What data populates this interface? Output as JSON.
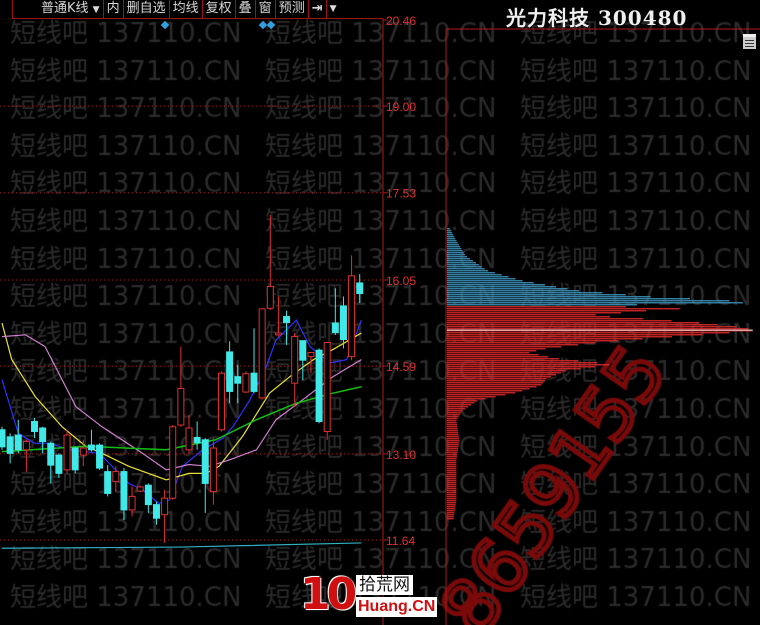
{
  "toolbar": {
    "kline_type": "普通K线",
    "items": [
      "内",
      "删自选",
      "均线",
      "复权",
      "叠",
      "窗",
      "预测"
    ],
    "icons": [
      "dropdown-arrow-icon",
      "jump-to-end-icon",
      "more-arrow-icon"
    ]
  },
  "header": {
    "title": "光力科技 300480"
  },
  "watermark": {
    "text": "短线吧 137110.CN",
    "overlay_number": "8659155"
  },
  "logo": {
    "number": "10",
    "cn": "拾荒网",
    "en": "Huang.CN"
  },
  "colors": {
    "up": "#e03030",
    "down": "#40e8e8",
    "grid": "#b01818",
    "ma5": "#3030ff",
    "ma10": "#e8e030",
    "ma20": "#d080d0",
    "ma60": "#10c010",
    "ma_long": "#30b0c0",
    "chip_profit": "#3a90b8",
    "chip_loss": "#d82828"
  },
  "chart_data": {
    "type": "candlestick",
    "yaxis": {
      "ticks": [
        "20.46",
        "19.00",
        "17.53",
        "16.05",
        "14.59",
        "13.10",
        "11.64"
      ],
      "range": [
        11.64,
        20.46
      ],
      "grid": "dashed"
    },
    "candles": [
      [
        13.51,
        13.56,
        13.17,
        13.22
      ],
      [
        13.39,
        13.45,
        12.94,
        13.11
      ],
      [
        13.42,
        13.68,
        13.11,
        13.17
      ],
      [
        13.17,
        13.34,
        12.8,
        13.31
      ],
      [
        13.65,
        13.71,
        13.37,
        13.48
      ],
      [
        13.54,
        13.56,
        13.11,
        13.31
      ],
      [
        13.28,
        13.31,
        12.6,
        12.91
      ],
      [
        13.08,
        13.11,
        12.69,
        12.77
      ],
      [
        12.83,
        13.51,
        12.77,
        13.42
      ],
      [
        13.2,
        13.22,
        12.77,
        12.83
      ],
      [
        13.08,
        13.34,
        12.89,
        13.2
      ],
      [
        13.25,
        13.51,
        13.14,
        13.17
      ],
      [
        13.25,
        13.28,
        12.83,
        12.86
      ],
      [
        12.8,
        12.91,
        12.38,
        12.43
      ],
      [
        12.63,
        12.89,
        12.46,
        12.8
      ],
      [
        12.8,
        12.86,
        11.98,
        12.15
      ],
      [
        12.15,
        12.55,
        12.04,
        12.38
      ],
      [
        12.47,
        12.56,
        12.45,
        12.54
      ],
      [
        12.57,
        12.6,
        12.1,
        12.24
      ],
      [
        12.24,
        12.29,
        11.9,
        12.01
      ],
      [
        12.07,
        12.49,
        11.59,
        12.35
      ],
      [
        12.35,
        13.59,
        12.32,
        13.56
      ],
      [
        13.59,
        14.92,
        13.56,
        14.21
      ],
      [
        13.17,
        13.76,
        13.11,
        13.54
      ],
      [
        13.38,
        13.65,
        13.17,
        13.29
      ],
      [
        13.34,
        13.37,
        12.1,
        12.6
      ],
      [
        12.46,
        13.37,
        12.24,
        13.2
      ],
      [
        13.51,
        14.5,
        13.48,
        14.47
      ],
      [
        14.83,
        15.01,
        13.96,
        14.16
      ],
      [
        14.41,
        14.61,
        13.96,
        14.3
      ],
      [
        14.15,
        14.5,
        14.13,
        14.46
      ],
      [
        14.47,
        15.23,
        14.13,
        14.16
      ],
      [
        14.05,
        15.57,
        14.02,
        15.56
      ],
      [
        15.57,
        17.15,
        15.54,
        15.94
      ],
      [
        15.12,
        15.77,
        15.09,
        15.15
      ],
      [
        15.43,
        15.53,
        14.95,
        15.33
      ],
      [
        14.3,
        15.15,
        13.9,
        15.09
      ],
      [
        15.02,
        15.03,
        14.35,
        14.69
      ],
      [
        14.75,
        14.83,
        14.47,
        14.82
      ],
      [
        14.86,
        14.89,
        13.62,
        13.65
      ],
      [
        13.48,
        15.0,
        13.34,
        14.99
      ],
      [
        15.32,
        15.91,
        15.12,
        15.16
      ],
      [
        15.61,
        15.77,
        14.89,
        15.04
      ],
      [
        14.75,
        16.47,
        14.69,
        16.12
      ],
      [
        16.0,
        16.15,
        15.66,
        15.82
      ]
    ],
    "candle_fields": [
      "open",
      "high",
      "low",
      "close"
    ],
    "moving_averages": [
      {
        "key": "ma5",
        "points": [
          [
            0,
            14.36
          ],
          [
            2,
            13.45
          ],
          [
            4,
            13.28
          ],
          [
            6,
            13.28
          ],
          [
            8.2,
            13.17
          ],
          [
            12,
            13.11
          ],
          [
            13.2,
            12.94
          ],
          [
            15.6,
            12.6
          ],
          [
            17.3,
            12.49
          ],
          [
            19.3,
            12.26
          ],
          [
            20.6,
            12.32
          ],
          [
            22.2,
            12.89
          ],
          [
            24.7,
            13.17
          ],
          [
            27.2,
            13.37
          ],
          [
            28.4,
            13.56
          ],
          [
            30.5,
            14.02
          ],
          [
            32.5,
            14.58
          ],
          [
            33.7,
            15.03
          ],
          [
            36.2,
            15.37
          ],
          [
            37.9,
            14.92
          ],
          [
            40.3,
            14.64
          ],
          [
            42.4,
            14.7
          ],
          [
            44.2,
            15.37
          ]
        ]
      },
      {
        "key": "ma10",
        "points": [
          [
            0,
            15.32
          ],
          [
            1.2,
            14.7
          ],
          [
            4.1,
            14.07
          ],
          [
            7.4,
            13.56
          ],
          [
            10.3,
            13.23
          ],
          [
            12.3,
            13.11
          ],
          [
            15.6,
            12.89
          ],
          [
            20.2,
            12.66
          ],
          [
            23,
            12.77
          ],
          [
            25.1,
            12.77
          ],
          [
            26.7,
            12.89
          ],
          [
            29.6,
            13.4
          ],
          [
            32.9,
            14.13
          ],
          [
            35.4,
            14.41
          ],
          [
            38.3,
            14.7
          ],
          [
            40.7,
            14.87
          ],
          [
            44.2,
            15.15
          ]
        ]
      },
      {
        "key": "ma20",
        "points": [
          [
            0,
            15.09
          ],
          [
            2.9,
            15.12
          ],
          [
            5.3,
            14.92
          ],
          [
            9.1,
            13.9
          ],
          [
            12.3,
            13.56
          ],
          [
            17.3,
            13.11
          ],
          [
            20.2,
            12.83
          ],
          [
            23,
            12.92
          ],
          [
            25.5,
            12.89
          ],
          [
            28,
            13.0
          ],
          [
            31.3,
            13.17
          ],
          [
            33.7,
            13.68
          ],
          [
            37,
            14.02
          ],
          [
            40.7,
            14.41
          ],
          [
            44.2,
            14.7
          ]
        ]
      },
      {
        "key": "ma60",
        "points": [
          [
            0,
            13.14
          ],
          [
            10.3,
            13.23
          ],
          [
            20.2,
            13.17
          ],
          [
            26.3,
            13.34
          ],
          [
            31.3,
            13.68
          ],
          [
            36.2,
            13.96
          ],
          [
            40.7,
            14.13
          ],
          [
            44.2,
            14.24
          ]
        ]
      },
      {
        "key": "ma_long",
        "points": [
          [
            0,
            11.5
          ],
          [
            22,
            11.52
          ],
          [
            44.2,
            11.59
          ]
        ]
      }
    ],
    "chip_distribution": {
      "split_price": 15.62,
      "marker_price": 15.2,
      "profile": [
        [
          16.93,
          1
        ],
        [
          16.73,
          3
        ],
        [
          16.47,
          6
        ],
        [
          16.22,
          13
        ],
        [
          16.05,
          24
        ],
        [
          15.88,
          42
        ],
        [
          15.78,
          64
        ],
        [
          15.71,
          90
        ],
        [
          15.68,
          100
        ],
        [
          15.62,
          40
        ],
        [
          15.59,
          80
        ],
        [
          15.54,
          64
        ],
        [
          15.46,
          45
        ],
        [
          15.41,
          61
        ],
        [
          15.34,
          80
        ],
        [
          15.25,
          96
        ],
        [
          15.2,
          98
        ],
        [
          15.15,
          87
        ],
        [
          15.07,
          64
        ],
        [
          15.0,
          48
        ],
        [
          14.9,
          32
        ],
        [
          14.83,
          26
        ],
        [
          14.73,
          35
        ],
        [
          14.63,
          53
        ],
        [
          14.52,
          38
        ],
        [
          14.39,
          32
        ],
        [
          14.27,
          30
        ],
        [
          14.15,
          22
        ],
        [
          14.02,
          10
        ],
        [
          13.85,
          5
        ],
        [
          13.68,
          3
        ],
        [
          13.34,
          4
        ],
        [
          13.0,
          3
        ],
        [
          12.66,
          3
        ],
        [
          12.32,
          3
        ],
        [
          11.98,
          2
        ]
      ]
    }
  }
}
